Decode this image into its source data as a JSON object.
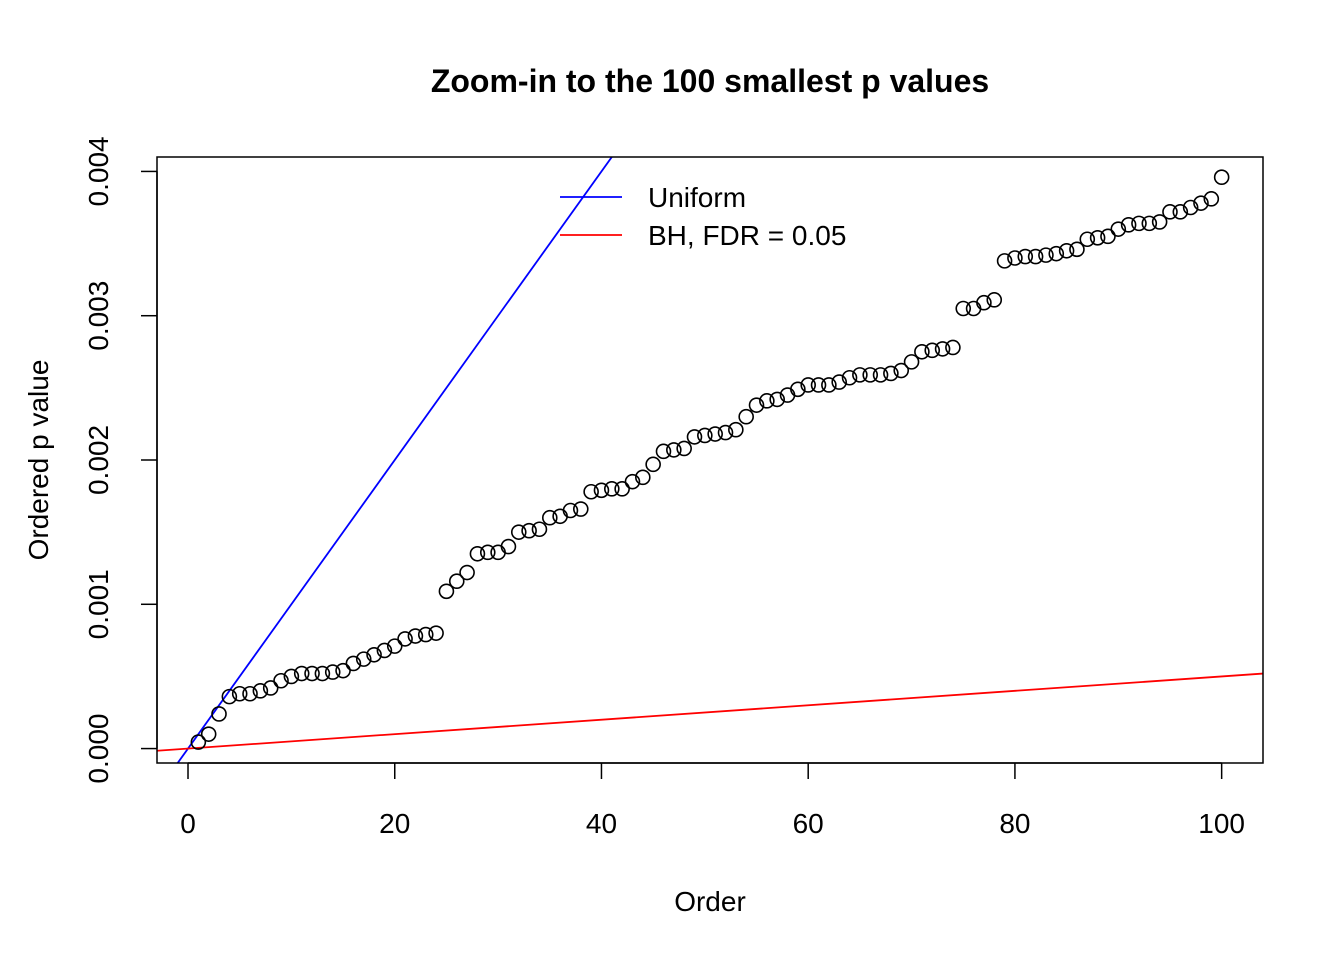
{
  "chart_data": {
    "type": "scatter",
    "title": "Zoom-in to the 100 smallest p values",
    "xlabel": "Order",
    "ylabel": "Ordered p value",
    "xlim": [
      -3,
      104
    ],
    "ylim": [
      -0.0001,
      0.0041
    ],
    "xticks": [
      0,
      20,
      40,
      60,
      80,
      100
    ],
    "xtick_labels": [
      "0",
      "20",
      "40",
      "60",
      "80",
      "100"
    ],
    "yticks": [
      0,
      0.001,
      0.002,
      0.003,
      0.004
    ],
    "ytick_labels": [
      "0.000",
      "0.001",
      "0.002",
      "0.003",
      "0.004"
    ],
    "grid": false,
    "legend_position": "top-center",
    "series": [
      {
        "name": "points",
        "kind": "scatter",
        "color": "#000000",
        "x": [
          1,
          2,
          3,
          4,
          5,
          6,
          7,
          8,
          9,
          10,
          11,
          12,
          13,
          14,
          15,
          16,
          17,
          18,
          19,
          20,
          21,
          22,
          23,
          24,
          25,
          26,
          27,
          28,
          29,
          30,
          31,
          32,
          33,
          34,
          35,
          36,
          37,
          38,
          39,
          40,
          41,
          42,
          43,
          44,
          45,
          46,
          47,
          48,
          49,
          50,
          51,
          52,
          53,
          54,
          55,
          56,
          57,
          58,
          59,
          60,
          61,
          62,
          63,
          64,
          65,
          66,
          67,
          68,
          69,
          70,
          71,
          72,
          73,
          74,
          75,
          76,
          77,
          78,
          79,
          80,
          81,
          82,
          83,
          84,
          85,
          86,
          87,
          88,
          89,
          90,
          91,
          92,
          93,
          94,
          95,
          96,
          97,
          98,
          99,
          100
        ],
        "y": [
          4.5e-05,
          0.0001,
          0.00024,
          0.00036,
          0.00038,
          0.00038,
          0.0004,
          0.00042,
          0.00047,
          0.0005,
          0.00052,
          0.00052,
          0.00052,
          0.00053,
          0.00054,
          0.00059,
          0.00062,
          0.00065,
          0.00068,
          0.00071,
          0.00076,
          0.00078,
          0.00079,
          0.0008,
          0.00109,
          0.00116,
          0.00122,
          0.00135,
          0.00136,
          0.00136,
          0.0014,
          0.0015,
          0.00151,
          0.00152,
          0.0016,
          0.00161,
          0.00165,
          0.00166,
          0.00178,
          0.00179,
          0.0018,
          0.0018,
          0.00185,
          0.00188,
          0.00197,
          0.00206,
          0.00207,
          0.00208,
          0.00216,
          0.00217,
          0.00218,
          0.00219,
          0.00221,
          0.0023,
          0.00238,
          0.00241,
          0.00242,
          0.00245,
          0.00249,
          0.00252,
          0.00252,
          0.00252,
          0.00254,
          0.00257,
          0.00259,
          0.00259,
          0.00259,
          0.0026,
          0.00262,
          0.00268,
          0.00275,
          0.00276,
          0.00277,
          0.00278,
          0.00305,
          0.00305,
          0.00309,
          0.00311,
          0.00338,
          0.0034,
          0.00341,
          0.00341,
          0.00342,
          0.00343,
          0.00345,
          0.00346,
          0.00353,
          0.00354,
          0.00355,
          0.0036,
          0.00363,
          0.00364,
          0.00364,
          0.00365,
          0.00372,
          0.00372,
          0.00375,
          0.00378,
          0.00381,
          0.00396
        ]
      },
      {
        "name": "Uniform",
        "kind": "abline",
        "color": "#0000ff",
        "intercept": 0,
        "slope": 0.0001
      },
      {
        "name": "BH, FDR = 0.05",
        "kind": "abline",
        "color": "#ff0000",
        "intercept": 0,
        "slope": 5e-06
      }
    ]
  }
}
